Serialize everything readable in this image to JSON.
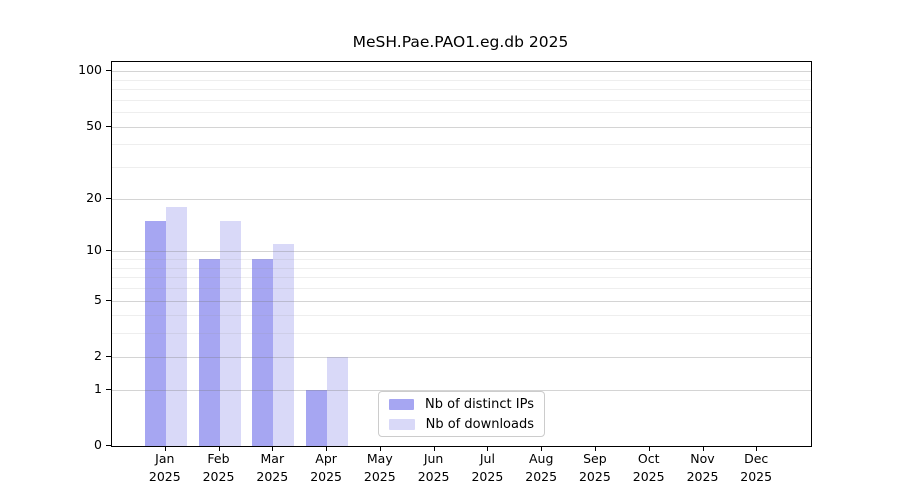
{
  "chart_data": {
    "type": "bar",
    "title": "MeSH.Pae.PAO1.eg.db 2025",
    "categories": [
      "Jan",
      "Feb",
      "Mar",
      "Apr",
      "May",
      "Jun",
      "Jul",
      "Aug",
      "Sep",
      "Oct",
      "Nov",
      "Dec"
    ],
    "x_axis": {
      "year_label": "2025"
    },
    "series": [
      {
        "name": "Nb of distinct IPs",
        "color": "#a6a6f2",
        "values": [
          15,
          9,
          9,
          1,
          0,
          0,
          0,
          0,
          0,
          0,
          0,
          0
        ]
      },
      {
        "name": "Nb of downloads",
        "color": "#d9d9f8",
        "values": [
          18,
          15,
          11,
          2,
          0,
          0,
          0,
          0,
          0,
          0,
          0,
          0
        ]
      }
    ],
    "y_axis": {
      "scale": "log10(value+1)",
      "ticks": [
        0,
        1,
        2,
        5,
        10,
        20,
        50,
        100
      ],
      "minor_gridlines": [
        3,
        4,
        6,
        7,
        8,
        9,
        30,
        40,
        60,
        70,
        80,
        90
      ],
      "range_top": 112
    },
    "legend_position": "lower center",
    "grid": true
  }
}
